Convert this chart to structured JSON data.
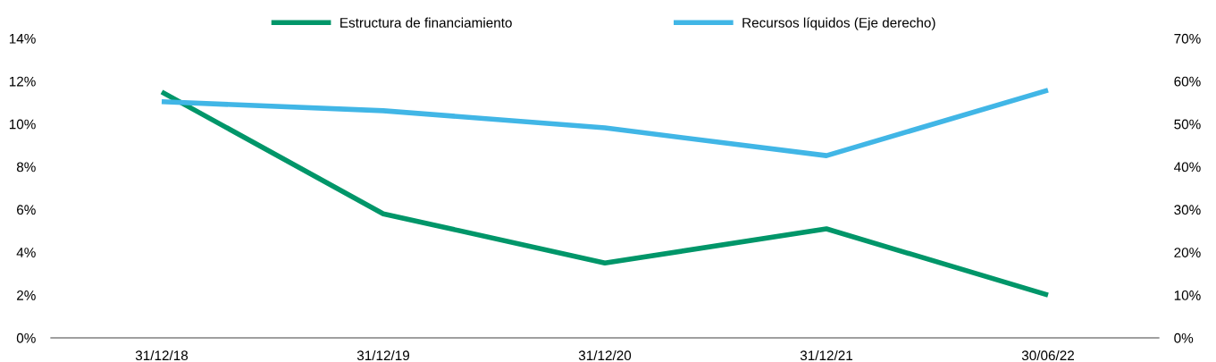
{
  "chart_data": {
    "type": "line",
    "categories": [
      "31/12/18",
      "31/12/19",
      "31/12/20",
      "31/12/21",
      "30/06/22"
    ],
    "series": [
      {
        "name": "Estructura de financiamiento",
        "color": "#009669",
        "values": [
          11.5,
          5.8,
          3.5,
          5.1,
          2.0
        ]
      },
      {
        "name": "Recursos líquidos (Eje derecho)",
        "color": "#41b6e6",
        "axis": "y2",
        "values": [
          55.2,
          53.1,
          49.1,
          42.6,
          57.9
        ]
      }
    ],
    "ylim": [
      0,
      14
    ],
    "yticks": [
      {
        "value": 0,
        "label": "0%"
      },
      {
        "value": 2,
        "label": "2%"
      },
      {
        "value": 4,
        "label": "4%"
      },
      {
        "value": 6,
        "label": "6%"
      },
      {
        "value": 8,
        "label": "8%"
      },
      {
        "value": 10,
        "label": "10%"
      },
      {
        "value": 12,
        "label": "12%"
      },
      {
        "value": 14,
        "label": "14%"
      }
    ],
    "y2lim": [
      0,
      70
    ],
    "y2ticks": [
      {
        "value": 0,
        "label": "0%"
      },
      {
        "value": 10,
        "label": "10%"
      },
      {
        "value": 20,
        "label": "20%"
      },
      {
        "value": 30,
        "label": "30%"
      },
      {
        "value": 40,
        "label": "40%"
      },
      {
        "value": 50,
        "label": "50%"
      },
      {
        "value": 60,
        "label": "60%"
      },
      {
        "value": 70,
        "label": "70%"
      }
    ],
    "grid": false,
    "legend": "top",
    "marker": "none",
    "line_style": "solid"
  }
}
